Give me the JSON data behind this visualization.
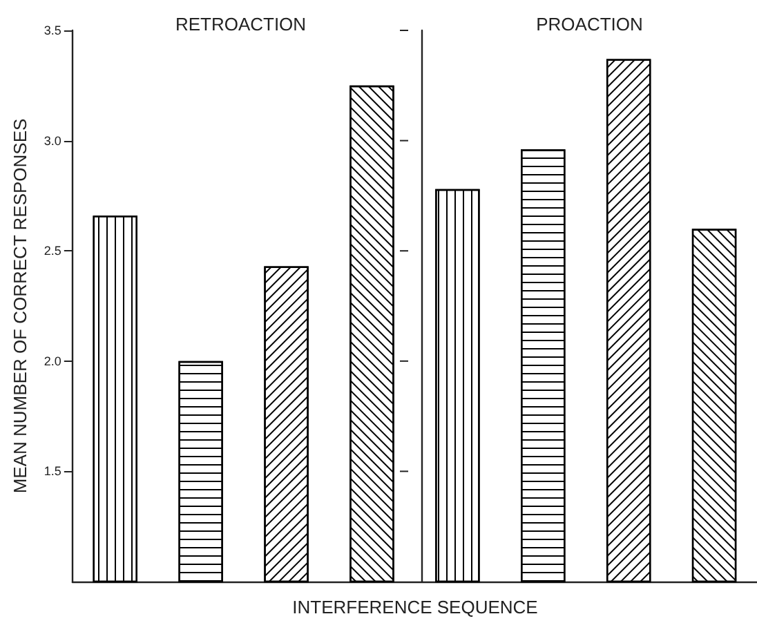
{
  "chart_data": {
    "type": "bar",
    "ylabel": "MEAN NUMBER OF CORRECT RESPONSES",
    "xlabel": "INTERFERENCE SEQUENCE",
    "annotations": [
      "RETROACTION",
      "PROACTION"
    ],
    "categories": [
      null,
      null,
      null,
      null,
      null,
      null,
      null,
      null
    ],
    "series": [
      {
        "color": "#000000",
        "values": [
          2.66,
          2.0,
          2.43,
          3.25,
          2.78,
          2.96,
          3.37,
          2.6
        ]
      }
    ],
    "ylim": [
      1.0,
      3.5
    ],
    "yticks": [
      1.5,
      {
        "value": 2,
        "label": "2.0"
      },
      2.5,
      {
        "value": 3,
        "label": "3.0"
      },
      3.5
    ],
    "grid": false,
    "tick_labels": "y"
  }
}
